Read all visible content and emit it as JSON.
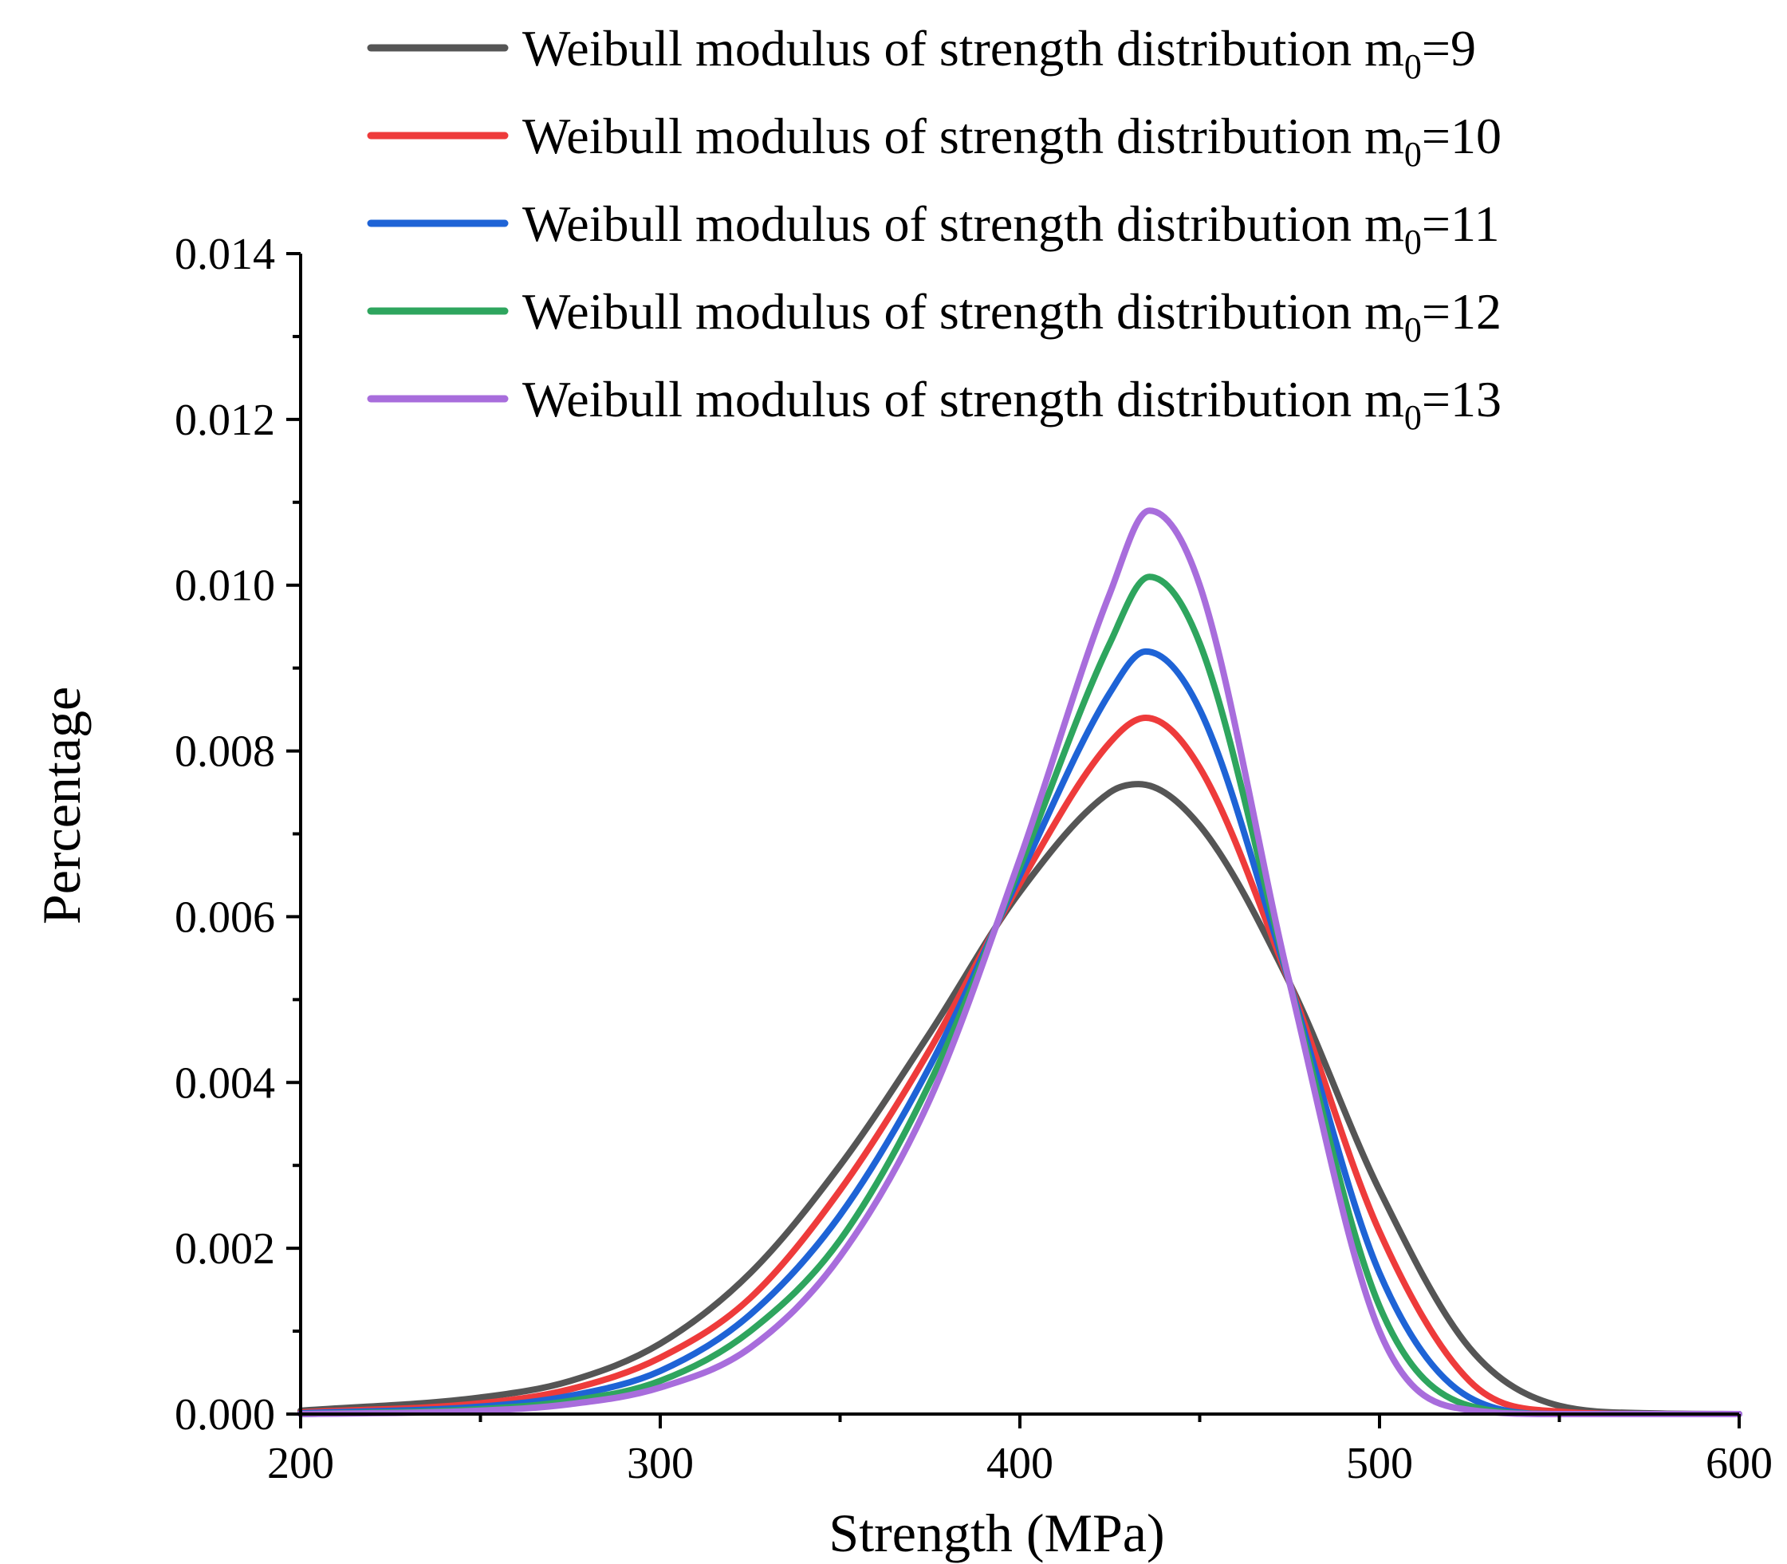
{
  "chart_data": {
    "type": "line",
    "title": "",
    "xlabel": "Strength (MPa)",
    "ylabel": "Percentage",
    "xlim": [
      200,
      600
    ],
    "ylim": [
      0,
      0.014
    ],
    "x_ticks": [
      "200",
      "300",
      "400",
      "500",
      "600"
    ],
    "y_ticks": [
      "0.000",
      "0.002",
      "0.004",
      "0.006",
      "0.008",
      "0.010",
      "0.012",
      "0.014"
    ],
    "grid": false,
    "legend_position": "top",
    "series": [
      {
        "name": "Weibull modulus of strength distribution m0=9",
        "label_main": "Weibull modulus of strength distribution m",
        "label_sub": "0",
        "label_end": "=9",
        "color": "#555555",
        "mode": 433,
        "peak": 0.0076,
        "points": [
          [
            200,
            4e-05
          ],
          [
            250,
            0.0002
          ],
          [
            275,
            0.0004
          ],
          [
            300,
            0.00085
          ],
          [
            325,
            0.0017
          ],
          [
            350,
            0.003
          ],
          [
            375,
            0.0046
          ],
          [
            400,
            0.0063
          ],
          [
            425,
            0.0075
          ],
          [
            433,
            0.0076
          ],
          [
            450,
            0.0071
          ],
          [
            475,
            0.0052
          ],
          [
            500,
            0.0027
          ],
          [
            525,
            0.0008
          ],
          [
            550,
            0.0001
          ],
          [
            575,
            1e-05
          ],
          [
            600,
            0.0
          ]
        ]
      },
      {
        "name": "Weibull modulus of strength distribution m0=10",
        "label_main": "Weibull modulus of strength distribution m",
        "label_sub": "0",
        "label_end": "=10",
        "color": "#ee3b3b",
        "mode": 435,
        "peak": 0.0084,
        "points": [
          [
            200,
            2e-05
          ],
          [
            250,
            0.00013
          ],
          [
            275,
            0.0003
          ],
          [
            300,
            0.00068
          ],
          [
            325,
            0.0014
          ],
          [
            350,
            0.0027
          ],
          [
            375,
            0.0044
          ],
          [
            400,
            0.0064
          ],
          [
            425,
            0.0081
          ],
          [
            435,
            0.0084
          ],
          [
            450,
            0.0078
          ],
          [
            475,
            0.0052
          ],
          [
            500,
            0.0022
          ],
          [
            525,
            0.0004
          ],
          [
            550,
            3e-05
          ],
          [
            575,
            0.0
          ],
          [
            600,
            0.0
          ]
        ]
      },
      {
        "name": "Weibull modulus of strength distribution m0=11",
        "label_main": "Weibull modulus of strength distribution m",
        "label_sub": "0",
        "label_end": "=11",
        "color": "#1e63d6",
        "mode": 435,
        "peak": 0.0092,
        "points": [
          [
            200,
            1e-05
          ],
          [
            250,
            9e-05
          ],
          [
            275,
            0.00022
          ],
          [
            300,
            0.00052
          ],
          [
            325,
            0.0012
          ],
          [
            350,
            0.0024
          ],
          [
            375,
            0.0042
          ],
          [
            400,
            0.0065
          ],
          [
            425,
            0.0087
          ],
          [
            435,
            0.0092
          ],
          [
            450,
            0.0085
          ],
          [
            475,
            0.0052
          ],
          [
            500,
            0.0017
          ],
          [
            525,
            0.0002
          ],
          [
            550,
            0.0
          ],
          [
            575,
            0.0
          ],
          [
            600,
            0.0
          ]
        ]
      },
      {
        "name": "Weibull modulus of strength distribution m0=12",
        "label_main": "Weibull modulus of strength distribution m",
        "label_sub": "0",
        "label_end": "=12",
        "color": "#2ea55e",
        "mode": 436,
        "peak": 0.0101,
        "points": [
          [
            200,
            0.0
          ],
          [
            250,
            6e-05
          ],
          [
            275,
            0.00016
          ],
          [
            300,
            0.0004
          ],
          [
            325,
            0.001
          ],
          [
            350,
            0.0021
          ],
          [
            375,
            0.004
          ],
          [
            400,
            0.0066
          ],
          [
            425,
            0.0093
          ],
          [
            436,
            0.0101
          ],
          [
            450,
            0.0093
          ],
          [
            475,
            0.0052
          ],
          [
            500,
            0.0013
          ],
          [
            525,
            0.0001
          ],
          [
            550,
            0.0
          ],
          [
            575,
            0.0
          ],
          [
            600,
            0.0
          ]
        ]
      },
      {
        "name": "Weibull modulus of strength distribution m0=13",
        "label_main": "Weibull modulus of strength distribution m",
        "label_sub": "0",
        "label_end": "=13",
        "color": "#a86ddc",
        "mode": 436,
        "peak": 0.0109,
        "points": [
          [
            200,
            0.0
          ],
          [
            250,
            4e-05
          ],
          [
            275,
            0.00012
          ],
          [
            300,
            0.00032
          ],
          [
            325,
            0.0008
          ],
          [
            350,
            0.0019
          ],
          [
            375,
            0.0038
          ],
          [
            400,
            0.0067
          ],
          [
            425,
            0.0099
          ],
          [
            436,
            0.0109
          ],
          [
            450,
            0.01
          ],
          [
            475,
            0.0052
          ],
          [
            500,
            0.001
          ],
          [
            525,
            5e-05
          ],
          [
            550,
            0.0
          ],
          [
            575,
            0.0
          ],
          [
            600,
            0.0
          ]
        ]
      }
    ]
  }
}
